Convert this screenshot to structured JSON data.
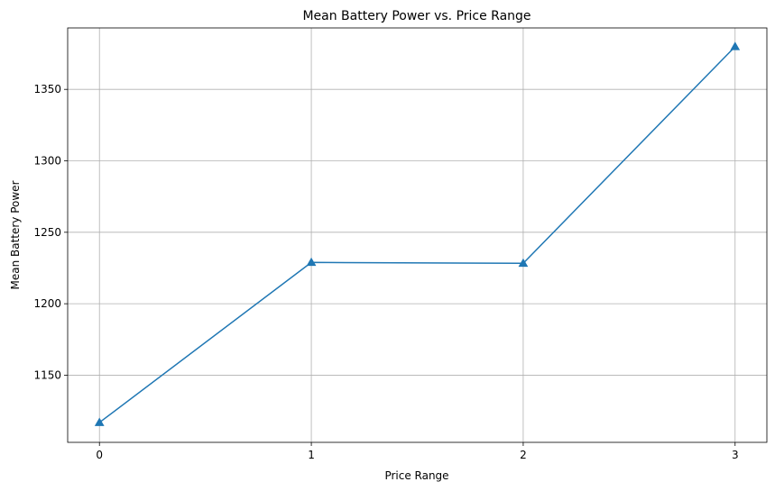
{
  "chart_data": {
    "type": "line",
    "title": "Mean Battery Power vs. Price Range",
    "xlabel": "Price Range",
    "ylabel": "Mean Battery Power",
    "x": [
      0,
      1,
      2,
      3
    ],
    "series": [
      {
        "values": [
          1116.9,
          1228.9,
          1228.3,
          1379.9
        ],
        "color": "#1f77b4",
        "marker": "triangle"
      }
    ],
    "xlim": [
      -0.15,
      3.15
    ],
    "ylim": [
      1103,
      1393
    ],
    "xticks": [
      0,
      1,
      2,
      3
    ],
    "yticks": [
      1150,
      1200,
      1250,
      1300,
      1350
    ],
    "grid": true
  }
}
